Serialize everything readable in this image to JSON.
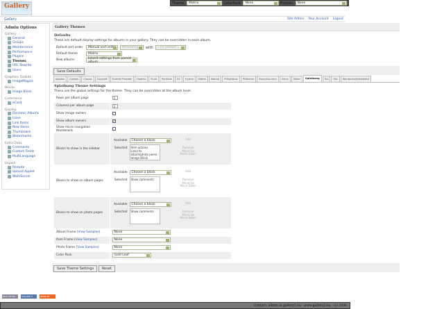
{
  "topbar": {
    "theme_label": "Theme:",
    "theme_value": "Matrix",
    "colorpack_label": "ColorPack:",
    "colorpack_value": "None",
    "frames_label": "Frames:",
    "frames_value": "None"
  },
  "logo": "Gallery",
  "breadcrumb": "Gallery",
  "toplinks": [
    "Site Admin",
    "Your Account",
    "Logout"
  ],
  "sidebar": {
    "title": "Admin Options",
    "groups": [
      {
        "name": "Gallery",
        "items": [
          "General",
          "Groups",
          "Maintenance",
          "Performance",
          "Plugins",
          "Themes",
          "URL Rewrite",
          "Users"
        ]
      },
      {
        "name": "Graphics Toolkits",
        "items": [
          "ImageMagick"
        ]
      },
      {
        "name": "Blocks",
        "items": [
          "Image Block"
        ]
      },
      {
        "name": "Commerce",
        "items": [
          "eCard"
        ]
      },
      {
        "name": "Display",
        "items": [
          "Dynamic Albums",
          "Icons",
          "Link Items",
          "New Items",
          "Thumbnails",
          "Watermarks"
        ]
      },
      {
        "name": "Extra Data",
        "items": [
          "Comments",
          "Custom Fields",
          "MultiLanguage"
        ]
      },
      {
        "name": "Import",
        "items": [
          "Remote",
          "Upload Applet",
          "Web/Server"
        ]
      }
    ],
    "current": "Themes"
  },
  "main": {
    "header": "Gallery Themes",
    "defaults_title": "Defaults",
    "defaults_desc": "These are default display settings for albums in your gallery. They can be overridden in each album.",
    "sort_label": "Default sort order",
    "sort_value": "Manual sort order",
    "sort_dir": "Ascending",
    "with_label": "with",
    "with_value": "« no presort »",
    "theme_label": "Default theme",
    "theme_value": "Matrix",
    "new_label": "New albums",
    "new_value": "Inherit settings from parent album",
    "save_defaults": "Save Defaults",
    "tabs": [
      "Ajaxian",
      "Carbon",
      "Classic",
      "Copyleft",
      "EclecticThreads",
      "Floatrix",
      "Fluid",
      "PortSale",
      "G1",
      "Hybrid",
      "Matrix",
      "Nature",
      "PGlightbox",
      "PGtheme",
      "RoundCorners",
      "Siriux",
      "Slider",
      "Splatbang",
      "Tsu",
      "Tile",
      "WordpressEmbedded"
    ],
    "active_tab": "Splatbang",
    "section_title": "Splatbang Theme Settings",
    "section_desc": "These are the global settings for the theme. They can be overridden at the album level.",
    "rows_label": "Rows per album page",
    "rows_value": "3",
    "cols_label": "Columns per album page",
    "cols_value": "3",
    "image_owners_label": "Show image owners",
    "image_owners": false,
    "album_owners_label": "Show album owners",
    "album_owners": true,
    "micro_label": "Show micro navigation thumbnails",
    "micro": false,
    "available_label": "Available",
    "selected_label": "Selected",
    "choose": "Choose a block",
    "add": "Add",
    "remove": "Remove",
    "move_up": "Move Up",
    "move_down": "Move Down",
    "sidebar_blocks_label": "Blocks to show in the sidebar",
    "sidebar_blocks": [
      "Item actions",
      "Links to album/photo peers",
      "Image Block"
    ],
    "album_blocks_label": "Blocks to show on album pages",
    "album_blocks": [
      "Show comments"
    ],
    "photo_blocks_label": "Blocks to show on photo pages",
    "photo_blocks": [
      "Show comments"
    ],
    "album_frame_label": "Album Frame",
    "item_frame_label": "Item Frame",
    "photo_frame_label": "Photo Frame",
    "view_samples": "View Samples",
    "frame_value": "None",
    "colorpack_label": "Color Pack",
    "colorpack_value": "Gold Leaf",
    "save_theme": "Save Theme Settings",
    "reset": "Reset"
  },
  "badges": [
    "W3C XHTML 1.0",
    "GALLERY 2",
    "MADE BY GALLERY"
  ],
  "footer": "Contact: admin at gallery2.hu - www.gallery2.hu - (c) 2006"
}
